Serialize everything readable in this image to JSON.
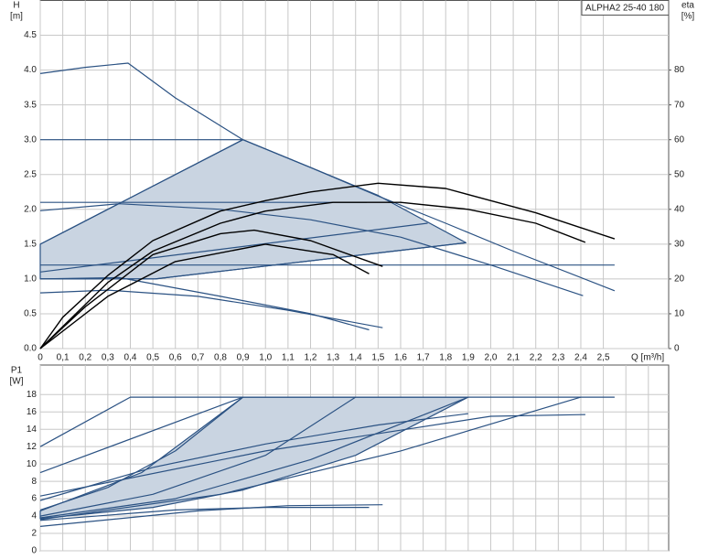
{
  "chart_data": [
    {
      "type": "line",
      "title": "ALPHA2 25-40 180",
      "ylabel": "H",
      "yunit": "[m]",
      "y2label": "eta",
      "y2unit": "[%]",
      "xlabel": "Q [m³/h]",
      "xlim": [
        0,
        2.79
      ],
      "ylim": [
        0,
        5
      ],
      "y2lim": [
        0,
        100
      ],
      "grid": true,
      "xticks": [
        0,
        {
          "value": 0.1,
          "label": "0,1"
        },
        {
          "value": 0.2,
          "label": "0,2"
        },
        {
          "value": 0.3,
          "label": "0,3"
        },
        {
          "value": 0.4,
          "label": "0,4"
        },
        {
          "value": 0.5,
          "label": "0,5"
        },
        {
          "value": 0.6,
          "label": "0,6"
        },
        {
          "value": 0.7,
          "label": "0,7"
        },
        {
          "value": 0.8,
          "label": "0,8"
        },
        {
          "value": 0.9,
          "label": "0,9"
        },
        {
          "value": 1,
          "label": "1,0"
        },
        {
          "value": 1.1,
          "label": "1,1"
        },
        {
          "value": 1.2,
          "label": "1,2"
        },
        {
          "value": 1.3,
          "label": "1,3"
        },
        {
          "value": 1.4,
          "label": "1,4"
        },
        {
          "value": 1.5,
          "label": "1,5"
        },
        {
          "value": 1.6,
          "label": "1,6"
        },
        {
          "value": 1.7,
          "label": "1,7"
        },
        {
          "value": 1.8,
          "label": "1,8"
        },
        {
          "value": 1.9,
          "label": "1,9"
        },
        {
          "value": 2,
          "label": "2,0"
        },
        {
          "value": 2.1,
          "label": "2,1"
        },
        {
          "value": 2.2,
          "label": "2,2"
        },
        {
          "value": 2.3,
          "label": "2,3"
        },
        {
          "value": 2.4,
          "label": "2,4"
        },
        {
          "value": 2.5,
          "label": "2,5"
        }
      ],
      "yticks": [
        {
          "value": 0,
          "label": "0.0"
        },
        0.5,
        {
          "value": 1,
          "label": "1.0"
        },
        1.5,
        {
          "value": 2,
          "label": "2.0"
        },
        2.5,
        {
          "value": 3,
          "label": "3.0"
        },
        3.5,
        {
          "value": 4,
          "label": "4.0"
        },
        4.5
      ],
      "y2ticks": [
        0,
        10,
        20,
        30,
        40,
        50,
        60,
        70,
        80
      ],
      "series": [
        {
          "fill": "#c9d4e1",
          "color": "#2b5283",
          "x": [
            0,
            0.9,
            1.2,
            1.5,
            1.89,
            0.51,
            0
          ],
          "values": [
            1.5,
            3.0,
            2.6,
            2.2,
            1.52,
            1.0,
            1.0
          ]
        },
        {
          "color": "#2b5283",
          "x": [
            0,
            0.2,
            0.39,
            0.6,
            0.9,
            1.2,
            1.5,
            1.8,
            2.1,
            2.55
          ],
          "values": [
            3.95,
            4.04,
            4.1,
            3.6,
            3.0,
            2.6,
            2.19,
            1.8,
            1.4,
            0.83
          ]
        },
        {
          "color": "#2b5283",
          "x": [
            0,
            0.9
          ],
          "values": [
            3.0,
            3.0
          ]
        },
        {
          "color": "#2b5283",
          "x": [
            0,
            1.45
          ],
          "values": [
            2.1,
            2.1
          ]
        },
        {
          "color": "#2b5283",
          "x": [
            0,
            2.55
          ],
          "values": [
            1.2,
            1.2
          ]
        },
        {
          "color": "#2b5283",
          "x": [
            0,
            0.9
          ],
          "values": [
            1.5,
            3.0
          ]
        },
        {
          "color": "#2b5283",
          "x": [
            0,
            1.72
          ],
          "values": [
            1.1,
            1.8
          ]
        },
        {
          "color": "#2b5283",
          "x": [
            0,
            0.51,
            1.89
          ],
          "values": [
            1.0,
            1.0,
            1.52
          ]
        },
        {
          "color": "#2b5283",
          "x": [
            0,
            0.35,
            0.8,
            1.2,
            1.6,
            2.0,
            2.41
          ],
          "values": [
            1.98,
            2.08,
            2.0,
            1.85,
            1.6,
            1.2,
            0.76
          ]
        },
        {
          "color": "#2b5283",
          "x": [
            0,
            0.3,
            0.7,
            1.1,
            1.52
          ],
          "values": [
            0.8,
            0.84,
            0.75,
            0.55,
            0.3
          ]
        },
        {
          "color": "#2b5283",
          "x": [
            0,
            0.35,
            0.8,
            1.2,
            1.46
          ],
          "values": [
            1.0,
            1.02,
            0.75,
            0.5,
            0.27
          ]
        },
        {
          "color": "#000000",
          "axis": "y2",
          "x": [
            0,
            0.1,
            0.3,
            0.5,
            0.8,
            1.0,
            1.2,
            1.5,
            1.8,
            2.0,
            2.2,
            2.55
          ],
          "values": [
            0,
            9,
            21,
            31,
            39.5,
            42.5,
            45,
            47.5,
            46,
            42.5,
            39,
            31.5
          ]
        },
        {
          "color": "#000000",
          "axis": "y2",
          "x": [
            0,
            0.3,
            0.5,
            0.8,
            1.0,
            1.3,
            1.6,
            1.9,
            2.2,
            2.42
          ],
          "values": [
            0,
            19,
            28,
            36,
            39.5,
            42,
            42,
            40,
            36,
            30.5
          ]
        },
        {
          "color": "#000000",
          "axis": "y2",
          "x": [
            0,
            0.2,
            0.5,
            0.8,
            0.95,
            1.2,
            1.52
          ],
          "values": [
            0,
            12,
            27,
            33,
            34,
            31,
            23.6
          ]
        },
        {
          "color": "#000000",
          "axis": "y2",
          "x": [
            0,
            0.3,
            0.6,
            1.0,
            1.3,
            1.46
          ],
          "values": [
            0,
            15,
            25,
            30,
            27,
            21.5
          ]
        }
      ]
    },
    {
      "type": "line",
      "ylabel": "P1",
      "yunit": "[W]",
      "xlim": [
        0,
        2.79
      ],
      "ylim": [
        0,
        21.4
      ],
      "grid": true,
      "xticks": [
        0,
        0.1,
        0.2,
        0.3,
        0.4,
        0.5,
        0.6,
        0.7,
        0.8,
        0.9,
        1,
        1.1,
        1.2,
        1.3,
        1.4,
        1.5,
        1.6,
        1.7,
        1.8,
        1.9,
        2,
        2.1,
        2.2,
        2.3,
        2.4,
        2.5,
        2.6,
        2.7
      ],
      "yticks": [
        0,
        2,
        4,
        6,
        8,
        10,
        12,
        14,
        16,
        18
      ],
      "series": [
        {
          "fill": "#c9d4e1",
          "color": "#2b5283",
          "x": [
            0,
            0.45,
            0.9,
            1.9,
            1.4,
            0.9,
            0.5,
            0
          ],
          "values": [
            4.6,
            9,
            17.7,
            17.7,
            11,
            7,
            5,
            3.7
          ]
        },
        {
          "color": "#2b5283",
          "x": [
            0,
            0.4,
            2.55
          ],
          "values": [
            12,
            17.7,
            17.7
          ]
        },
        {
          "color": "#2b5283",
          "x": [
            0,
            0.9
          ],
          "values": [
            9,
            17.7
          ]
        },
        {
          "color": "#2b5283",
          "x": [
            0,
            0.3,
            0.6,
            0.9
          ],
          "values": [
            4.7,
            7.3,
            11.5,
            17.7
          ]
        },
        {
          "color": "#2b5283",
          "x": [
            0,
            0.5,
            1.0,
            1.4
          ],
          "values": [
            4,
            6.5,
            11,
            17.7
          ]
        },
        {
          "color": "#2b5283",
          "x": [
            0,
            0.6,
            1.2,
            1.9
          ],
          "values": [
            3.8,
            6,
            10.5,
            17.7
          ]
        },
        {
          "color": "#2b5283",
          "x": [
            0,
            0.8,
            1.6,
            2.4
          ],
          "values": [
            3.6,
            6.5,
            11.5,
            17.7
          ]
        },
        {
          "color": "#2b5283",
          "x": [
            0,
            1.0,
            2.0,
            2.42
          ],
          "values": [
            6.3,
            11.5,
            15.5,
            15.7
          ]
        },
        {
          "color": "#2b5283",
          "x": [
            0,
            0.5,
            1.0,
            1.5,
            1.9
          ],
          "values": [
            5.8,
            9.6,
            12.3,
            14.5,
            15.8
          ]
        },
        {
          "color": "#2b5283",
          "x": [
            0,
            0.7,
            1.1,
            1.52
          ],
          "values": [
            2.8,
            4.6,
            5.2,
            5.3
          ]
        },
        {
          "color": "#2b5283",
          "x": [
            0,
            0.6,
            1.0,
            1.46
          ],
          "values": [
            3.5,
            4.7,
            5.0,
            5.0
          ]
        }
      ]
    }
  ]
}
